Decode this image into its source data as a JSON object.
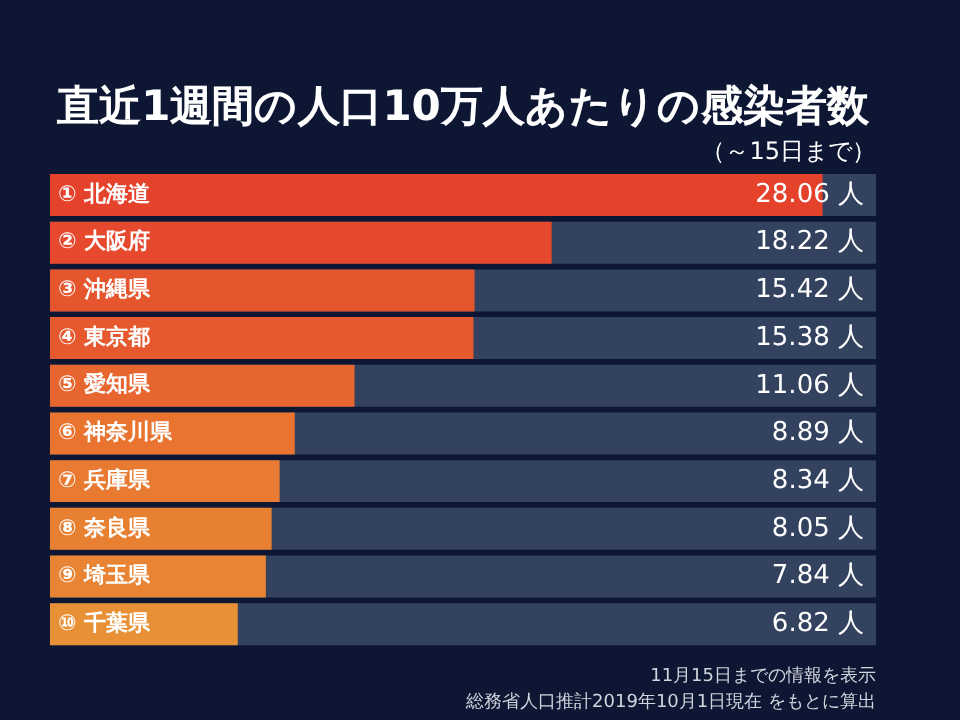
{
  "chart_data": {
    "type": "bar",
    "orientation": "horizontal",
    "title": "直近1週間の人口10万人あたりの感染者数",
    "subtitle": "（～15日まで）",
    "categories": [
      "① 北海道",
      "② 大阪府",
      "③ 沖縄県",
      "④ 東京都",
      "⑤ 愛知県",
      "⑥ 神奈川県",
      "⑦ 兵庫県",
      "⑧ 奈良県",
      "⑨ 埼玉県",
      "⑩ 千葉県"
    ],
    "values": [
      28.06,
      18.22,
      15.42,
      15.38,
      11.06,
      8.89,
      8.34,
      8.05,
      7.84,
      6.82
    ],
    "colors": [
      "#e5422c",
      "#e6492d",
      "#e6562e",
      "#e6582e",
      "#e7662f",
      "#e87430",
      "#e87a31",
      "#e88032",
      "#e88433",
      "#e89035"
    ],
    "value_labels": [
      "28.06 人",
      "18.22 人",
      "15.42 人",
      "15.38 人",
      "11.06 人",
      "8.89 人",
      "8.34 人",
      "8.05 人",
      "7.84 人",
      "6.82 人"
    ],
    "xlim": [
      0,
      30
    ],
    "legend": false,
    "tick_labels": false,
    "annotations": [
      "11月15日までの情報を表示",
      "総務省人口推計2019年10月1日現在 をもとに算出"
    ]
  }
}
